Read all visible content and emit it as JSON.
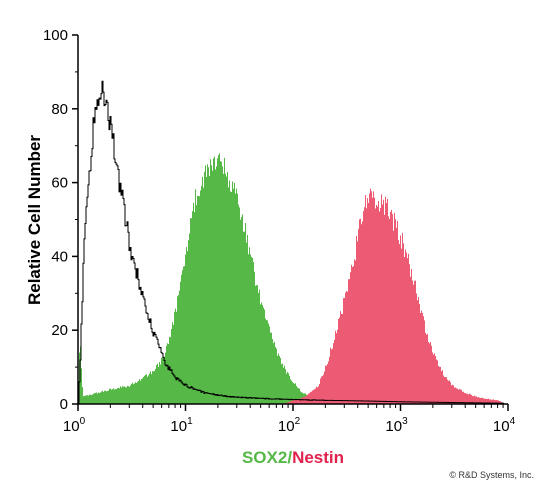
{
  "chart_data": {
    "type": "area",
    "title": "",
    "ylabel": "Relative Cell Number",
    "xlabel_parts": [
      "SOX2",
      "/",
      "Nestin"
    ],
    "x_scale": "log",
    "xlim": [
      1,
      10000
    ],
    "ylim": [
      0,
      100
    ],
    "grid": false,
    "x_tick_labels": [
      {
        "base": "10",
        "exp": "0"
      },
      {
        "base": "10",
        "exp": "1"
      },
      {
        "base": "10",
        "exp": "2"
      },
      {
        "base": "10",
        "exp": "3"
      },
      {
        "base": "10",
        "exp": "4"
      }
    ],
    "y_ticks": [
      0,
      20,
      40,
      60,
      80,
      100
    ],
    "y_tick_labels": [
      "0",
      "20",
      "40",
      "60",
      "80",
      "100"
    ],
    "series": [
      {
        "key": "isotype",
        "style": "outline",
        "color": "#000000",
        "points": [
          [
            1.0,
            0
          ],
          [
            1.05,
            14
          ],
          [
            1.12,
            41
          ],
          [
            1.2,
            54
          ],
          [
            1.3,
            66
          ],
          [
            1.4,
            78
          ],
          [
            1.55,
            82
          ],
          [
            1.7,
            85
          ],
          [
            1.85,
            80
          ],
          [
            2.0,
            75
          ],
          [
            2.3,
            64
          ],
          [
            2.6,
            54
          ],
          [
            3.0,
            44
          ],
          [
            3.5,
            35
          ],
          [
            4.0,
            29
          ],
          [
            4.7,
            22
          ],
          [
            5.5,
            16
          ],
          [
            6.5,
            11
          ],
          [
            8.0,
            7
          ],
          [
            10,
            5
          ],
          [
            15,
            3
          ],
          [
            25,
            2
          ],
          [
            50,
            1.5
          ],
          [
            100,
            1.2
          ],
          [
            200,
            1
          ],
          [
            500,
            0.8
          ],
          [
            1000,
            0.6
          ],
          [
            3000,
            0.4
          ],
          [
            9000,
            0.2
          ]
        ]
      },
      {
        "key": "sox2",
        "style": "fill",
        "color": "#56b947",
        "points": [
          [
            1.0,
            0
          ],
          [
            1.03,
            18
          ],
          [
            1.1,
            2
          ],
          [
            1.5,
            3
          ],
          [
            2.0,
            4
          ],
          [
            3.0,
            5
          ],
          [
            4.0,
            7
          ],
          [
            5.0,
            9
          ],
          [
            6.0,
            12
          ],
          [
            7.0,
            17
          ],
          [
            8.0,
            25
          ],
          [
            9.0,
            33
          ],
          [
            10,
            40
          ],
          [
            11,
            48
          ],
          [
            12,
            55
          ],
          [
            14,
            60
          ],
          [
            16,
            63
          ],
          [
            18,
            66
          ],
          [
            20,
            67
          ],
          [
            23,
            64
          ],
          [
            26,
            60
          ],
          [
            30,
            55
          ],
          [
            35,
            48
          ],
          [
            40,
            40
          ],
          [
            45,
            33
          ],
          [
            50,
            28
          ],
          [
            60,
            20
          ],
          [
            70,
            14
          ],
          [
            85,
            9
          ],
          [
            100,
            6
          ],
          [
            120,
            3
          ],
          [
            150,
            2
          ],
          [
            200,
            1
          ],
          [
            300,
            0.5
          ],
          [
            600,
            0.2
          ],
          [
            1200,
            0
          ]
        ]
      },
      {
        "key": "nestin",
        "style": "fill",
        "color": "#ec5b73",
        "points": [
          [
            80,
            0
          ],
          [
            100,
            1
          ],
          [
            130,
            2
          ],
          [
            170,
            5
          ],
          [
            200,
            10
          ],
          [
            230,
            16
          ],
          [
            270,
            23
          ],
          [
            320,
            32
          ],
          [
            380,
            42
          ],
          [
            450,
            53
          ],
          [
            520,
            58
          ],
          [
            600,
            55
          ],
          [
            700,
            54
          ],
          [
            800,
            52
          ],
          [
            900,
            48
          ],
          [
            1000,
            45
          ],
          [
            1200,
            38
          ],
          [
            1400,
            30
          ],
          [
            1700,
            20
          ],
          [
            2000,
            14
          ],
          [
            2500,
            8
          ],
          [
            3000,
            5
          ],
          [
            4000,
            3
          ],
          [
            5000,
            2
          ],
          [
            6000,
            1.5
          ],
          [
            8000,
            1
          ],
          [
            9500,
            0
          ]
        ]
      }
    ]
  },
  "credit": "© R&D Systems, Inc."
}
